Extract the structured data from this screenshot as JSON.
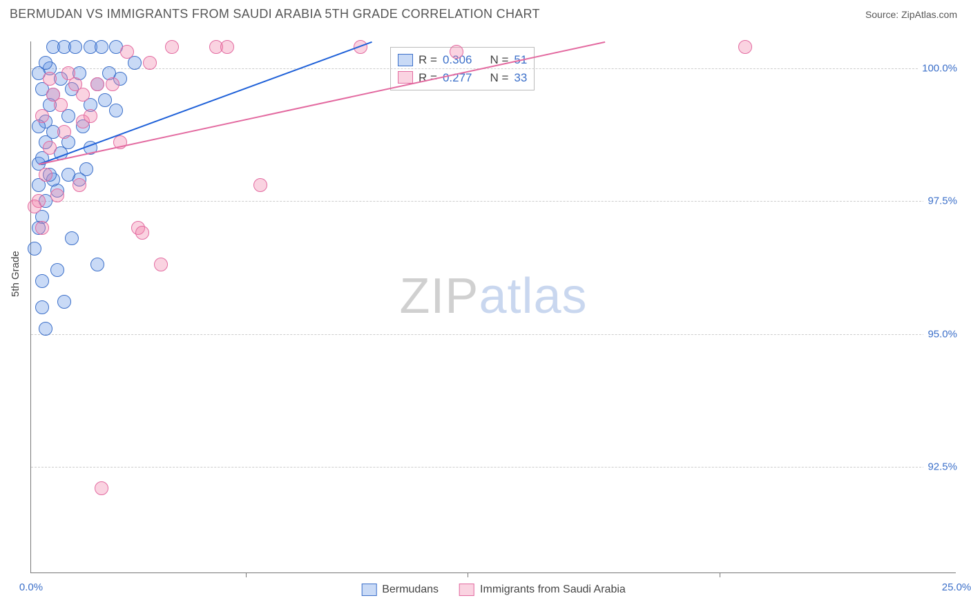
{
  "title": "BERMUDAN VS IMMIGRANTS FROM SAUDI ARABIA 5TH GRADE CORRELATION CHART",
  "source_label": "Source: ZipAtlas.com",
  "ylabel": "5th Grade",
  "watermark": {
    "a": "ZIP",
    "b": "atlas"
  },
  "colors": {
    "series_a_fill": "rgba(100,150,230,0.35)",
    "series_a_stroke": "#3b6fc9",
    "series_b_fill": "rgba(240,130,170,0.35)",
    "series_b_stroke": "#e36aa0",
    "trend_a": "#1e60d8",
    "trend_b": "#e36aa0",
    "axis_value": "#3b6fc9",
    "grid": "#cccccc"
  },
  "chart": {
    "type": "scatter",
    "xlim": [
      0,
      25
    ],
    "ylim": [
      90.5,
      100.5
    ],
    "yticks": [
      92.5,
      95.0,
      97.5,
      100.0
    ],
    "ytick_labels": [
      "92.5%",
      "95.0%",
      "97.5%",
      "100.0%"
    ],
    "xticks": [
      0,
      12.5,
      25
    ],
    "xtick_labels": [
      "0.0%",
      "",
      "25.0%"
    ],
    "xtick_minor": [
      5.8,
      11.8,
      18.6
    ],
    "marker_radius": 10
  },
  "series_a": {
    "label": "Bermudans",
    "R_label": "R =",
    "R": "0.306",
    "N_label": "N =",
    "N": "51",
    "trend": {
      "x1": 0.2,
      "y1": 98.2,
      "x2": 9.2,
      "y2": 100.5
    },
    "points": [
      [
        0.2,
        98.2
      ],
      [
        0.3,
        98.3
      ],
      [
        0.4,
        98.6
      ],
      [
        0.4,
        99.0
      ],
      [
        0.5,
        99.3
      ],
      [
        0.3,
        99.6
      ],
      [
        0.5,
        100.0
      ],
      [
        0.6,
        100.4
      ],
      [
        0.9,
        100.4
      ],
      [
        1.2,
        100.4
      ],
      [
        1.6,
        100.4
      ],
      [
        1.9,
        100.4
      ],
      [
        2.3,
        100.4
      ],
      [
        0.7,
        96.2
      ],
      [
        0.3,
        96.0
      ],
      [
        0.4,
        95.1
      ],
      [
        0.3,
        95.5
      ],
      [
        0.9,
        95.6
      ],
      [
        1.1,
        96.8
      ],
      [
        0.7,
        97.7
      ],
      [
        0.4,
        97.5
      ],
      [
        0.3,
        97.2
      ],
      [
        1.0,
        98.6
      ],
      [
        1.0,
        99.1
      ],
      [
        1.4,
        98.9
      ],
      [
        1.6,
        99.3
      ],
      [
        1.8,
        99.7
      ],
      [
        2.0,
        99.4
      ],
      [
        2.3,
        99.2
      ],
      [
        2.4,
        99.8
      ],
      [
        1.5,
        98.1
      ],
      [
        1.6,
        98.5
      ],
      [
        1.3,
        97.9
      ],
      [
        0.6,
        98.8
      ],
      [
        0.2,
        98.9
      ],
      [
        0.2,
        97.8
      ],
      [
        0.6,
        97.9
      ],
      [
        0.1,
        96.6
      ],
      [
        0.2,
        97.0
      ],
      [
        0.5,
        98.0
      ],
      [
        0.8,
        98.4
      ],
      [
        1.0,
        98.0
      ],
      [
        0.2,
        99.9
      ],
      [
        0.4,
        100.1
      ],
      [
        1.1,
        99.6
      ],
      [
        1.3,
        99.9
      ],
      [
        0.8,
        99.8
      ],
      [
        0.6,
        99.5
      ],
      [
        2.8,
        100.1
      ],
      [
        2.1,
        99.9
      ],
      [
        1.8,
        96.3
      ]
    ]
  },
  "series_b": {
    "label": "Immigrants from Saudi Arabia",
    "R_label": "R =",
    "R": "0.277",
    "N_label": "N =",
    "N": "33",
    "trend": {
      "x1": 0.2,
      "y1": 98.2,
      "x2": 15.5,
      "y2": 100.5
    },
    "points": [
      [
        0.4,
        98.0
      ],
      [
        0.5,
        98.5
      ],
      [
        0.3,
        99.1
      ],
      [
        0.6,
        99.5
      ],
      [
        0.8,
        99.3
      ],
      [
        1.2,
        99.7
      ],
      [
        1.4,
        99.0
      ],
      [
        1.6,
        99.1
      ],
      [
        1.8,
        99.7
      ],
      [
        1.0,
        99.9
      ],
      [
        2.2,
        99.7
      ],
      [
        2.6,
        100.3
      ],
      [
        3.2,
        100.1
      ],
      [
        3.8,
        100.4
      ],
      [
        5.0,
        100.4
      ],
      [
        5.3,
        100.4
      ],
      [
        8.9,
        100.4
      ],
      [
        19.3,
        100.4
      ],
      [
        11.5,
        100.3
      ],
      [
        0.2,
        97.5
      ],
      [
        0.1,
        97.4
      ],
      [
        0.3,
        97.0
      ],
      [
        1.3,
        97.8
      ],
      [
        0.7,
        97.6
      ],
      [
        2.9,
        97.0
      ],
      [
        3.0,
        96.9
      ],
      [
        3.5,
        96.3
      ],
      [
        6.2,
        97.8
      ],
      [
        1.9,
        92.1
      ],
      [
        1.4,
        99.5
      ],
      [
        0.9,
        98.8
      ],
      [
        0.5,
        99.8
      ],
      [
        2.4,
        98.6
      ]
    ]
  }
}
